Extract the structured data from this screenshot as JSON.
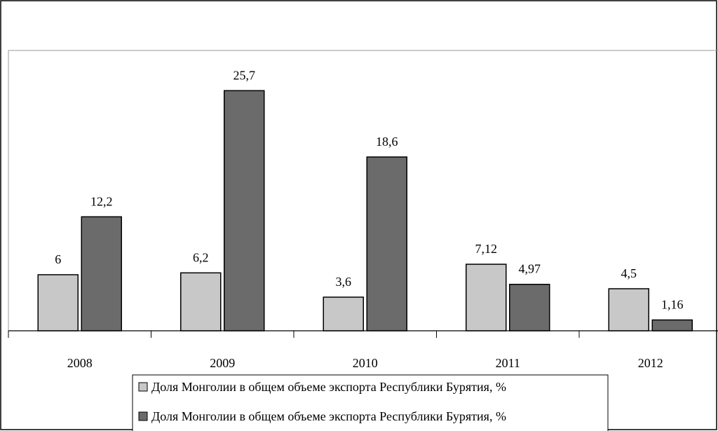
{
  "chart_data": {
    "type": "bar",
    "categories": [
      "2008",
      "2009",
      "2010",
      "2011",
      "2012"
    ],
    "series": [
      {
        "name": "Доля Монголии в общем объеме экспорта Республики Бурятия, %",
        "color": "#c8c8c8",
        "values": [
          6,
          6.2,
          3.6,
          7.12,
          4.5
        ],
        "value_labels": [
          "6",
          "6,2",
          "3,6",
          "7,12",
          "4,5"
        ]
      },
      {
        "name": "Доля Монголии в общем объеме экспорта Республики Бурятия, %",
        "color": "#6b6b6b",
        "values": [
          12.2,
          25.7,
          18.6,
          4.97,
          1.16
        ],
        "value_labels": [
          "12,2",
          "25,7",
          "18,6",
          "4,97",
          "1,16"
        ]
      }
    ],
    "ylim": [
      0,
      30
    ],
    "legend": "bottom"
  }
}
